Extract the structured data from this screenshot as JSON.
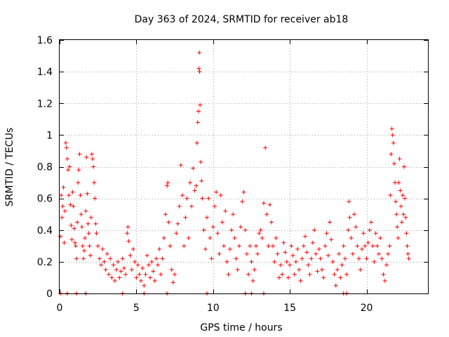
{
  "chart_data": {
    "type": "scatter",
    "title": "Day 363 of 2024, SRMTID for receiver ab18",
    "xlabel": "GPS time / hours",
    "ylabel": "SRMTID / TECUs",
    "xlim": [
      0,
      24
    ],
    "ylim": [
      0,
      1.6
    ],
    "xticks": [
      0,
      5,
      10,
      15,
      20
    ],
    "yticks": [
      0,
      0.2,
      0.4,
      0.6,
      0.8,
      1,
      1.2,
      1.4,
      1.6
    ],
    "xtick_labels": [
      "0",
      "5",
      "10",
      "15",
      "20"
    ],
    "ytick_labels": [
      "0",
      "0.2",
      "0.4",
      "0.6",
      "0.8",
      "1",
      "1.2",
      "1.4",
      "1.6"
    ],
    "grid": true,
    "marker": "+",
    "color": "#ff0000",
    "series": [
      {
        "name": "SRMTID",
        "points": [
          [
            0.05,
            0.36
          ],
          [
            0.1,
            0.62
          ],
          [
            0.15,
            0.48
          ],
          [
            0.2,
            0.55
          ],
          [
            0.25,
            0.67
          ],
          [
            0.3,
            0.32
          ],
          [
            0.35,
            0.52
          ],
          [
            0.4,
            0.95
          ],
          [
            0.45,
            0.92
          ],
          [
            0.5,
            0.85
          ],
          [
            0.55,
            0.78
          ],
          [
            0.6,
            0.62
          ],
          [
            0.65,
            0.8
          ],
          [
            0.7,
            0.56
          ],
          [
            0.75,
            0.43
          ],
          [
            0.8,
            0.34
          ],
          [
            0.85,
            0.64
          ],
          [
            0.9,
            0.55
          ],
          [
            0.95,
            0.41
          ],
          [
            1.0,
            0.32
          ],
          [
            1.05,
            0.3
          ],
          [
            1.1,
            0.22
          ],
          [
            1.15,
            0.45
          ],
          [
            1.2,
            0.7
          ],
          [
            1.25,
            0.78
          ],
          [
            1.3,
            0.88
          ],
          [
            1.35,
            0.62
          ],
          [
            1.4,
            0.5
          ],
          [
            1.45,
            0.42
          ],
          [
            1.5,
            0.3
          ],
          [
            1.55,
            0.22
          ],
          [
            1.6,
            0.27
          ],
          [
            1.65,
            0.35
          ],
          [
            1.7,
            0.52
          ],
          [
            1.75,
            0.86
          ],
          [
            1.8,
            0.63
          ],
          [
            1.85,
            0.44
          ],
          [
            1.9,
            0.38
          ],
          [
            1.95,
            0.3
          ],
          [
            2.0,
            0.24
          ],
          [
            2.05,
            0.48
          ],
          [
            2.1,
            0.88
          ],
          [
            2.15,
            0.85
          ],
          [
            2.2,
            0.8
          ],
          [
            2.25,
            0.7
          ],
          [
            2.3,
            0.6
          ],
          [
            2.35,
            0.44
          ],
          [
            2.4,
            0.38
          ],
          [
            2.5,
            0.3
          ],
          [
            2.6,
            0.22
          ],
          [
            2.7,
            0.18
          ],
          [
            2.8,
            0.28
          ],
          [
            2.9,
            0.2
          ],
          [
            3.0,
            0.15
          ],
          [
            3.1,
            0.25
          ],
          [
            3.2,
            0.12
          ],
          [
            3.3,
            0.22
          ],
          [
            3.4,
            0.1
          ],
          [
            3.5,
            0.18
          ],
          [
            3.6,
            0.08
          ],
          [
            3.7,
            0.15
          ],
          [
            3.8,
            0.2
          ],
          [
            3.9,
            0.1
          ],
          [
            4.0,
            0.14
          ],
          [
            4.1,
            0.22
          ],
          [
            4.2,
            0.16
          ],
          [
            4.3,
            0.12
          ],
          [
            4.4,
            0.38
          ],
          [
            4.45,
            0.42
          ],
          [
            4.5,
            0.33
          ],
          [
            4.6,
            0.24
          ],
          [
            4.7,
            0.15
          ],
          [
            4.8,
            0.28
          ],
          [
            4.9,
            0.2
          ],
          [
            5.0,
            0.1
          ],
          [
            5.1,
            0.18
          ],
          [
            5.2,
            0.12
          ],
          [
            5.3,
            0.08
          ],
          [
            5.4,
            0.16
          ],
          [
            5.5,
            0.05
          ],
          [
            5.6,
            0.12
          ],
          [
            5.7,
            0.24
          ],
          [
            5.8,
            0.18
          ],
          [
            5.9,
            0.1
          ],
          [
            6.0,
            0.2
          ],
          [
            6.1,
            0.14
          ],
          [
            6.2,
            0.08
          ],
          [
            6.3,
            0.22
          ],
          [
            6.4,
            0.18
          ],
          [
            6.5,
            0.28
          ],
          [
            6.6,
            0.12
          ],
          [
            6.7,
            0.22
          ],
          [
            6.8,
            0.35
          ],
          [
            6.9,
            0.5
          ],
          [
            7.0,
            0.68
          ],
          [
            7.05,
            0.7
          ],
          [
            7.1,
            0.45
          ],
          [
            7.2,
            0.3
          ],
          [
            7.3,
            0.15
          ],
          [
            7.4,
            0.07
          ],
          [
            7.5,
            0.12
          ],
          [
            7.6,
            0.38
          ],
          [
            7.7,
            0.44
          ],
          [
            7.8,
            0.55
          ],
          [
            7.9,
            0.81
          ],
          [
            8.0,
            0.62
          ],
          [
            8.1,
            0.3
          ],
          [
            8.2,
            0.48
          ],
          [
            8.3,
            0.6
          ],
          [
            8.4,
            0.35
          ],
          [
            8.5,
            0.7
          ],
          [
            8.6,
            0.55
          ],
          [
            8.7,
            0.79
          ],
          [
            8.8,
            0.65
          ],
          [
            8.9,
            0.68
          ],
          [
            8.95,
            0.95
          ],
          [
            9.0,
            1.08
          ],
          [
            9.05,
            1.15
          ],
          [
            9.08,
            1.42
          ],
          [
            9.1,
            1.52
          ],
          [
            9.12,
            1.4
          ],
          [
            9.15,
            1.19
          ],
          [
            9.2,
            0.83
          ],
          [
            9.25,
            0.71
          ],
          [
            9.3,
            0.6
          ],
          [
            9.4,
            0.4
          ],
          [
            9.5,
            0.28
          ],
          [
            9.6,
            0.48
          ],
          [
            9.7,
            0.6
          ],
          [
            9.8,
            0.35
          ],
          [
            9.9,
            0.22
          ],
          [
            10.0,
            0.42
          ],
          [
            10.1,
            0.55
          ],
          [
            10.2,
            0.64
          ],
          [
            10.3,
            0.38
          ],
          [
            10.4,
            0.25
          ],
          [
            10.5,
            0.62
          ],
          [
            10.6,
            0.45
          ],
          [
            10.7,
            0.3
          ],
          [
            10.8,
            0.52
          ],
          [
            10.9,
            0.2
          ],
          [
            11.0,
            0.12
          ],
          [
            11.1,
            0.28
          ],
          [
            11.2,
            0.4
          ],
          [
            11.3,
            0.5
          ],
          [
            11.4,
            0.35
          ],
          [
            11.5,
            0.22
          ],
          [
            11.6,
            0.15
          ],
          [
            11.7,
            0.3
          ],
          [
            11.8,
            0.42
          ],
          [
            11.9,
            0.58
          ],
          [
            12.0,
            0.64
          ],
          [
            12.1,
            0.4
          ],
          [
            12.2,
            0.25
          ],
          [
            12.3,
            0.12
          ],
          [
            12.4,
            0.3
          ],
          [
            12.5,
            0.2
          ],
          [
            12.6,
            0.08
          ],
          [
            12.7,
            0.15
          ],
          [
            12.8,
            0.3
          ],
          [
            12.9,
            0.25
          ],
          [
            13.0,
            0.38
          ],
          [
            13.1,
            0.4
          ],
          [
            13.2,
            0.35
          ],
          [
            13.3,
            0.57
          ],
          [
            13.4,
            0.92
          ],
          [
            13.5,
            0.5
          ],
          [
            13.6,
            0.3
          ],
          [
            13.7,
            0.56
          ],
          [
            13.8,
            0.45
          ],
          [
            13.9,
            0.3
          ],
          [
            14.0,
            0.2
          ],
          [
            14.1,
            0.35
          ],
          [
            14.2,
            0.25
          ],
          [
            14.3,
            0.1
          ],
          [
            14.4,
            0.18
          ],
          [
            14.5,
            0.12
          ],
          [
            14.6,
            0.32
          ],
          [
            14.7,
            0.26
          ],
          [
            14.8,
            0.2
          ],
          [
            14.9,
            0.1
          ],
          [
            15.0,
            0.18
          ],
          [
            15.1,
            0.3
          ],
          [
            15.2,
            0.24
          ],
          [
            15.3,
            0.12
          ],
          [
            15.4,
            0.2
          ],
          [
            15.5,
            0.28
          ],
          [
            15.6,
            0.15
          ],
          [
            15.7,
            0.08
          ],
          [
            15.8,
            0.22
          ],
          [
            15.9,
            0.3
          ],
          [
            16.0,
            0.36
          ],
          [
            16.1,
            0.26
          ],
          [
            16.2,
            0.18
          ],
          [
            16.3,
            0.12
          ],
          [
            16.4,
            0.22
          ],
          [
            16.5,
            0.32
          ],
          [
            16.6,
            0.4
          ],
          [
            16.7,
            0.25
          ],
          [
            16.8,
            0.14
          ],
          [
            16.9,
            0.28
          ],
          [
            17.0,
            0.22
          ],
          [
            17.1,
            0.15
          ],
          [
            17.2,
            0.1
          ],
          [
            17.3,
            0.3
          ],
          [
            17.4,
            0.38
          ],
          [
            17.5,
            0.24
          ],
          [
            17.6,
            0.45
          ],
          [
            17.7,
            0.34
          ],
          [
            17.8,
            0.2
          ],
          [
            17.9,
            0.12
          ],
          [
            18.0,
            0.05
          ],
          [
            18.1,
            0.15
          ],
          [
            18.2,
            0.25
          ],
          [
            18.3,
            0.1
          ],
          [
            18.4,
            0.18
          ],
          [
            18.5,
            0.3
          ],
          [
            18.6,
            0.22
          ],
          [
            18.7,
            0.12
          ],
          [
            18.8,
            0.4
          ],
          [
            18.85,
            0.58
          ],
          [
            18.9,
            0.48
          ],
          [
            19.0,
            0.35
          ],
          [
            19.1,
            0.25
          ],
          [
            19.2,
            0.5
          ],
          [
            19.3,
            0.42
          ],
          [
            19.4,
            0.3
          ],
          [
            19.5,
            0.22
          ],
          [
            19.6,
            0.15
          ],
          [
            19.7,
            0.28
          ],
          [
            19.8,
            0.38
          ],
          [
            19.9,
            0.3
          ],
          [
            20.0,
            0.22
          ],
          [
            20.1,
            0.32
          ],
          [
            20.2,
            0.4
          ],
          [
            20.3,
            0.45
          ],
          [
            20.4,
            0.3
          ],
          [
            20.5,
            0.2
          ],
          [
            20.6,
            0.38
          ],
          [
            20.7,
            0.3
          ],
          [
            20.8,
            0.25
          ],
          [
            20.9,
            0.35
          ],
          [
            21.0,
            0.22
          ],
          [
            21.1,
            0.12
          ],
          [
            21.2,
            0.08
          ],
          [
            21.3,
            0.18
          ],
          [
            21.4,
            0.25
          ],
          [
            21.5,
            0.3
          ],
          [
            21.55,
            0.62
          ],
          [
            21.6,
            0.88
          ],
          [
            21.65,
            1.04
          ],
          [
            21.7,
            1.0
          ],
          [
            21.75,
            0.95
          ],
          [
            21.8,
            0.82
          ],
          [
            21.85,
            0.7
          ],
          [
            21.9,
            0.58
          ],
          [
            21.95,
            0.5
          ],
          [
            22.0,
            0.42
          ],
          [
            22.05,
            0.35
          ],
          [
            22.1,
            0.7
          ],
          [
            22.15,
            0.85
          ],
          [
            22.2,
            0.65
          ],
          [
            22.25,
            0.55
          ],
          [
            22.3,
            0.45
          ],
          [
            22.35,
            0.62
          ],
          [
            22.4,
            0.5
          ],
          [
            22.45,
            0.8
          ],
          [
            22.5,
            0.6
          ],
          [
            22.55,
            0.48
          ],
          [
            22.6,
            0.38
          ],
          [
            22.65,
            0.3
          ],
          [
            22.7,
            0.25
          ],
          [
            22.75,
            0.22
          ]
        ]
      }
    ],
    "zero_points_x": [
      0.05,
      0.5,
      1.1,
      1.7,
      4.1,
      5.5,
      7.0,
      9.6,
      12.1,
      12.5,
      13.3,
      18.5,
      18.7
    ]
  }
}
